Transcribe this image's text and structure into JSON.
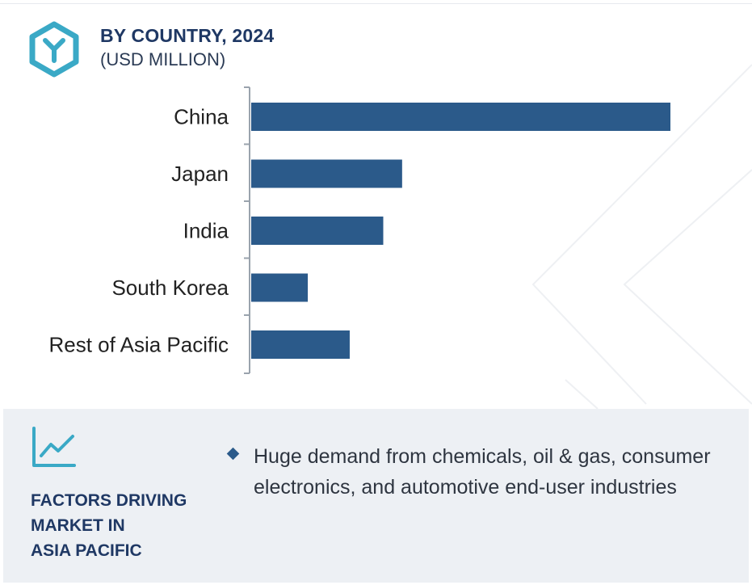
{
  "header": {
    "title": "BY COUNTRY, 2024",
    "subtitle": "(USD MILLION)",
    "logo_icon": "hexagon-y-logo-icon"
  },
  "chart_data": {
    "type": "bar",
    "orientation": "horizontal",
    "title": "BY COUNTRY, 2024",
    "subtitle": "(USD MILLION)",
    "categories": [
      "China",
      "Japan",
      "India",
      "South Korea",
      "Rest of Asia Pacific"
    ],
    "values": [
      100,
      36,
      31.5,
      13.5,
      23.5
    ],
    "bar_color": "#2b5a8a",
    "value_axis_visible": false,
    "grid": false,
    "legend": "none"
  },
  "factors": {
    "icon": "trend-line-chart-icon",
    "title": "FACTORS DRIVING MARKET IN ASIA PACIFIC",
    "title_lines": [
      "FACTORS DRIVING",
      "MARKET IN",
      "ASIA PACIFIC"
    ],
    "bullets": [
      "Huge demand from chemicals, oil & gas, consumer electronics, and automotive end-user industries"
    ]
  },
  "colors": {
    "accent_teal": "#3aa9c6",
    "navy": "#1f3864",
    "bar": "#2b5a8a",
    "panel_bg": "#edf0f4"
  }
}
